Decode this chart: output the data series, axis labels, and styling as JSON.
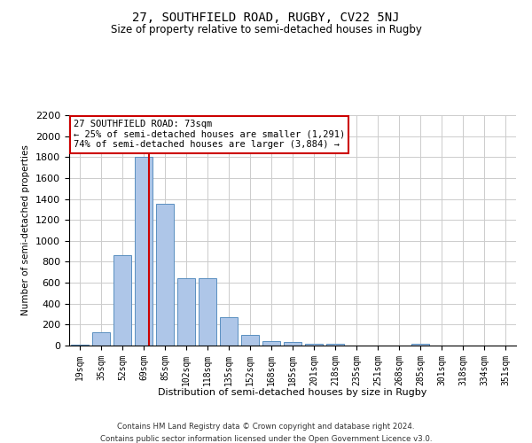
{
  "title_line1": "27, SOUTHFIELD ROAD, RUGBY, CV22 5NJ",
  "title_line2": "Size of property relative to semi-detached houses in Rugby",
  "xlabel": "Distribution of semi-detached houses by size in Rugby",
  "ylabel": "Number of semi-detached properties",
  "footer_line1": "Contains HM Land Registry data © Crown copyright and database right 2024.",
  "footer_line2": "Contains public sector information licensed under the Open Government Licence v3.0.",
  "annotation_title": "27 SOUTHFIELD ROAD: 73sqm",
  "annotation_line1": "← 25% of semi-detached houses are smaller (1,291)",
  "annotation_line2": "74% of semi-detached houses are larger (3,884) →",
  "bar_categories": [
    "19sqm",
    "35sqm",
    "52sqm",
    "69sqm",
    "85sqm",
    "102sqm",
    "118sqm",
    "135sqm",
    "152sqm",
    "168sqm",
    "185sqm",
    "201sqm",
    "218sqm",
    "235sqm",
    "251sqm",
    "268sqm",
    "285sqm",
    "301sqm",
    "318sqm",
    "334sqm",
    "351sqm"
  ],
  "bar_values": [
    10,
    130,
    860,
    1800,
    1350,
    640,
    640,
    270,
    100,
    45,
    30,
    20,
    15,
    0,
    0,
    0,
    20,
    0,
    0,
    0,
    0
  ],
  "bar_color": "#aec6e8",
  "bar_edge_color": "#5a8fc0",
  "vline_color": "#cc0000",
  "annotation_box_color": "#cc0000",
  "background_color": "#ffffff",
  "grid_color": "#cccccc",
  "ylim": [
    0,
    2200
  ],
  "yticks": [
    0,
    200,
    400,
    600,
    800,
    1000,
    1200,
    1400,
    1600,
    1800,
    2000,
    2200
  ],
  "title_fontsize": 10,
  "subtitle_fontsize": 8.5,
  "vline_pos": 3.25
}
